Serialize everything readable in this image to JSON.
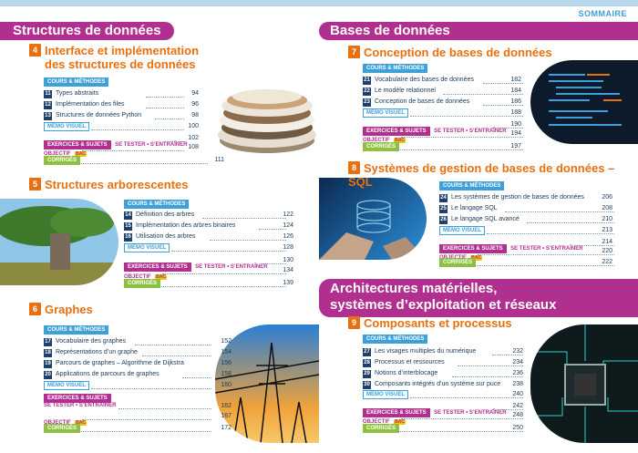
{
  "header": {
    "sommaire": "SOMMAIRE"
  },
  "sections": {
    "s1": "Structures de données",
    "s2": "Bases de données",
    "s3_line1": "Architectures matérielles,",
    "s3_line2": "systèmes d’exploitation et réseaux"
  },
  "labels": {
    "cours": "COURS & MÉTHODES",
    "memo": "MÉMO VISUEL",
    "exercices": "EXERCICES & SUJETS",
    "tester": "SE TESTER • S’ENTRAÎNER",
    "objectif": "OBJECTIF",
    "bac": "BAC",
    "corriges": "CORRIGÉS"
  },
  "chapters": [
    {
      "num": "4",
      "title_1": "Interface et implémentation",
      "title_2": "des structures de données",
      "lessons": [
        {
          "n": "11",
          "t": "Types abstraits",
          "p": "94"
        },
        {
          "n": "12",
          "t": "Implémentation des files",
          "p": "96"
        },
        {
          "n": "13",
          "t": "Structures de données Python",
          "p": "98"
        }
      ],
      "memo_p": "100",
      "ex_p": "102",
      "obj_p": "108",
      "cor_p": "111"
    },
    {
      "num": "5",
      "title_1": "Structures arborescentes",
      "lessons": [
        {
          "n": "14",
          "t": "Définition des arbres",
          "p": "122"
        },
        {
          "n": "15",
          "t": "Implémentation des arbres binaires",
          "p": "124"
        },
        {
          "n": "16",
          "t": "Utilisation des arbres",
          "p": "126"
        }
      ],
      "memo_p": "128",
      "ex_p": "130",
      "obj_p": "134",
      "cor_p": "139"
    },
    {
      "num": "6",
      "title_1": "Graphes",
      "lessons": [
        {
          "n": "17",
          "t": "Vocabulaire des graphes",
          "p": "152"
        },
        {
          "n": "18",
          "t": "Représentations d’un graphe",
          "p": "154"
        },
        {
          "n": "19",
          "t": "Parcours de graphes – Algorithme de Dijkstra",
          "p": "156"
        },
        {
          "n": "20",
          "t": "Applications de parcours de graphes",
          "p": "158"
        }
      ],
      "memo_p": "160",
      "ex_p": "162",
      "obj_p": "167",
      "cor_p": "172"
    },
    {
      "num": "7",
      "title_1": "Conception de bases de données",
      "lessons": [
        {
          "n": "21",
          "t": "Vocabulaire des bases de données",
          "p": "182"
        },
        {
          "n": "22",
          "t": "Le modèle relationnel",
          "p": "184"
        },
        {
          "n": "23",
          "t": "Conception de bases de données",
          "p": "186"
        }
      ],
      "memo_p": "188",
      "ex_p": "190",
      "obj_p": "194",
      "cor_p": "197"
    },
    {
      "num": "8",
      "title_1": "Systèmes de gestion de bases de données – SQL",
      "lessons": [
        {
          "n": "24",
          "t": "Les systèmes de gestion de bases de données",
          "p": "206"
        },
        {
          "n": "25",
          "t": "Le langage SQL",
          "p": "208"
        },
        {
          "n": "26",
          "t": "Le langage SQL avancé",
          "p": "210"
        }
      ],
      "memo_p": "213",
      "ex_p": "214",
      "obj_p": "220",
      "cor_p": "222"
    },
    {
      "num": "9",
      "title_1": "Composants et processus",
      "lessons": [
        {
          "n": "27",
          "t": "Les visages multiples du numérique",
          "p": "232"
        },
        {
          "n": "28",
          "t": "Processus et ressources",
          "p": "234"
        },
        {
          "n": "29",
          "t": "Notions d’interblocage",
          "p": "236"
        },
        {
          "n": "30",
          "t": "Composants intégrés d’un système sur puce",
          "p": "238"
        }
      ],
      "memo_p": "240",
      "ex_p": "242",
      "obj_p": "248",
      "cor_p": "250"
    }
  ]
}
